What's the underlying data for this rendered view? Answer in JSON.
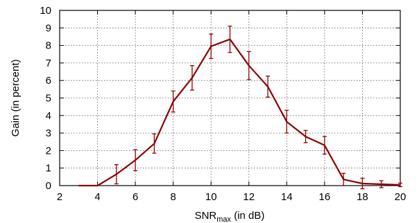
{
  "chart_data": {
    "type": "line",
    "title": "",
    "xlabel": {
      "main": "SNR",
      "sub": "max",
      "rest": " (in dB)"
    },
    "ylabel": "Gain (in percent)",
    "xlim": [
      2,
      20
    ],
    "ylim": [
      0,
      10
    ],
    "xticks": [
      2,
      4,
      6,
      8,
      10,
      12,
      14,
      16,
      18,
      20
    ],
    "yticks": [
      0,
      1,
      2,
      3,
      4,
      5,
      6,
      7,
      8,
      9,
      10
    ],
    "grid": true,
    "legend": "none",
    "color": "#8b0000",
    "series": [
      {
        "x": [
          3,
          4,
          5,
          6,
          7,
          8,
          9,
          10,
          11,
          12,
          13,
          14,
          15,
          16,
          17,
          18,
          19,
          20
        ],
        "y": [
          0,
          0,
          0.65,
          1.45,
          2.4,
          4.8,
          6.15,
          7.95,
          8.35,
          6.85,
          5.65,
          3.65,
          2.8,
          2.3,
          0.35,
          0.12,
          0.08,
          0.04
        ],
        "err": [
          0,
          0,
          0.55,
          0.6,
          0.55,
          0.6,
          0.7,
          0.7,
          0.75,
          0.8,
          0.6,
          0.65,
          0.35,
          0.5,
          0.35,
          0.3,
          0.2,
          0.1
        ]
      }
    ]
  }
}
